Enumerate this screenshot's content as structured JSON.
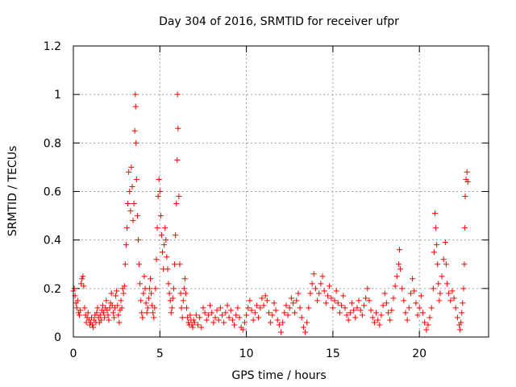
{
  "chart_data": {
    "type": "scatter",
    "title": "Day 304 of 2016, SRMTID for receiver ufpr",
    "xlabel": "GPS time / hours",
    "ylabel": "SRMTID / TECUs",
    "xlim": [
      0,
      24
    ],
    "ylim": [
      0,
      1.2
    ],
    "x_ticks": [
      0,
      5,
      10,
      15,
      20
    ],
    "x_tick_labels": [
      "0",
      "5",
      "10",
      "15",
      "20"
    ],
    "y_ticks": [
      0,
      0.2,
      0.4,
      0.6,
      0.8,
      1.0,
      1.2
    ],
    "y_tick_labels": [
      "0",
      "0.2",
      "0.4",
      "0.6",
      "0.8",
      "1",
      "1.2"
    ],
    "grid": true,
    "marker": "+",
    "color": "#ff0000",
    "series": [
      {
        "name": "SRMTID",
        "points": [
          [
            0.0,
            0.19
          ],
          [
            0.05,
            0.2
          ],
          [
            0.1,
            0.17
          ],
          [
            0.15,
            0.14
          ],
          [
            0.2,
            0.12
          ],
          [
            0.25,
            0.15
          ],
          [
            0.3,
            0.1
          ],
          [
            0.35,
            0.09
          ],
          [
            0.4,
            0.11
          ],
          [
            0.45,
            0.22
          ],
          [
            0.5,
            0.24
          ],
          [
            0.55,
            0.25
          ],
          [
            0.6,
            0.21
          ],
          [
            0.65,
            0.12
          ],
          [
            0.7,
            0.09
          ],
          [
            0.75,
            0.06
          ],
          [
            0.8,
            0.08
          ],
          [
            0.85,
            0.1
          ],
          [
            0.9,
            0.07
          ],
          [
            0.95,
            0.05
          ],
          [
            1.0,
            0.06
          ],
          [
            1.05,
            0.08
          ],
          [
            1.1,
            0.05
          ],
          [
            1.15,
            0.04
          ],
          [
            1.2,
            0.07
          ],
          [
            1.25,
            0.09
          ],
          [
            1.3,
            0.06
          ],
          [
            1.35,
            0.1
          ],
          [
            1.4,
            0.12
          ],
          [
            1.45,
            0.08
          ],
          [
            1.5,
            0.06
          ],
          [
            1.55,
            0.09
          ],
          [
            1.6,
            0.07
          ],
          [
            1.65,
            0.11
          ],
          [
            1.7,
            0.13
          ],
          [
            1.75,
            0.1
          ],
          [
            1.8,
            0.08
          ],
          [
            1.85,
            0.12
          ],
          [
            1.9,
            0.15
          ],
          [
            1.95,
            0.11
          ],
          [
            2.0,
            0.09
          ],
          [
            2.05,
            0.07
          ],
          [
            2.1,
            0.12
          ],
          [
            2.15,
            0.14
          ],
          [
            2.2,
            0.18
          ],
          [
            2.25,
            0.13
          ],
          [
            2.3,
            0.1
          ],
          [
            2.35,
            0.08
          ],
          [
            2.4,
            0.12
          ],
          [
            2.45,
            0.17
          ],
          [
            2.5,
            0.19
          ],
          [
            2.55,
            0.13
          ],
          [
            2.6,
            0.09
          ],
          [
            2.65,
            0.06
          ],
          [
            2.7,
            0.11
          ],
          [
            2.75,
            0.15
          ],
          [
            2.8,
            0.12
          ],
          [
            2.85,
            0.2
          ],
          [
            2.9,
            0.18
          ],
          [
            2.95,
            0.21
          ],
          [
            3.0,
            0.3
          ],
          [
            3.05,
            0.38
          ],
          [
            3.1,
            0.45
          ],
          [
            3.15,
            0.55
          ],
          [
            3.2,
            0.68
          ],
          [
            3.25,
            0.6
          ],
          [
            3.3,
            0.52
          ],
          [
            3.35,
            0.7
          ],
          [
            3.4,
            0.62
          ],
          [
            3.45,
            0.48
          ],
          [
            3.5,
            0.55
          ],
          [
            3.55,
            0.85
          ],
          [
            3.58,
            1.0
          ],
          [
            3.6,
            0.95
          ],
          [
            3.62,
            0.8
          ],
          [
            3.65,
            0.65
          ],
          [
            3.7,
            0.5
          ],
          [
            3.75,
            0.4
          ],
          [
            3.8,
            0.3
          ],
          [
            3.85,
            0.22
          ],
          [
            3.9,
            0.15
          ],
          [
            3.95,
            0.1
          ],
          [
            4.0,
            0.08
          ],
          [
            4.05,
            0.18
          ],
          [
            4.1,
            0.25
          ],
          [
            4.15,
            0.2
          ],
          [
            4.2,
            0.14
          ],
          [
            4.25,
            0.1
          ],
          [
            4.3,
            0.12
          ],
          [
            4.35,
            0.16
          ],
          [
            4.4,
            0.2
          ],
          [
            4.45,
            0.24
          ],
          [
            4.5,
            0.18
          ],
          [
            4.55,
            0.13
          ],
          [
            4.6,
            0.1
          ],
          [
            4.65,
            0.08
          ],
          [
            4.7,
            0.12
          ],
          [
            4.75,
            0.2
          ],
          [
            4.8,
            0.32
          ],
          [
            4.85,
            0.45
          ],
          [
            4.9,
            0.58
          ],
          [
            4.95,
            0.65
          ],
          [
            5.0,
            0.6
          ],
          [
            5.05,
            0.5
          ],
          [
            5.1,
            0.42
          ],
          [
            5.15,
            0.35
          ],
          [
            5.2,
            0.28
          ],
          [
            5.25,
            0.38
          ],
          [
            5.3,
            0.45
          ],
          [
            5.35,
            0.4
          ],
          [
            5.4,
            0.33
          ],
          [
            5.45,
            0.28
          ],
          [
            5.5,
            0.22
          ],
          [
            5.55,
            0.18
          ],
          [
            5.6,
            0.15
          ],
          [
            5.65,
            0.1
          ],
          [
            5.7,
            0.12
          ],
          [
            5.75,
            0.16
          ],
          [
            5.8,
            0.2
          ],
          [
            5.85,
            0.3
          ],
          [
            5.9,
            0.42
          ],
          [
            5.95,
            0.55
          ],
          [
            6.0,
            0.73
          ],
          [
            6.02,
            1.0
          ],
          [
            6.05,
            0.86
          ],
          [
            6.1,
            0.58
          ],
          [
            6.15,
            0.3
          ],
          [
            6.2,
            0.18
          ],
          [
            6.25,
            0.12
          ],
          [
            6.3,
            0.08
          ],
          [
            6.35,
            0.15
          ],
          [
            6.4,
            0.2
          ],
          [
            6.45,
            0.24
          ],
          [
            6.5,
            0.18
          ],
          [
            6.55,
            0.12
          ],
          [
            6.6,
            0.08
          ],
          [
            6.65,
            0.06
          ],
          [
            6.7,
            0.05
          ],
          [
            6.75,
            0.09
          ],
          [
            6.8,
            0.07
          ],
          [
            6.85,
            0.05
          ],
          [
            6.9,
            0.04
          ],
          [
            6.95,
            0.07
          ],
          [
            7.0,
            0.06
          ],
          [
            7.1,
            0.09
          ],
          [
            7.2,
            0.05
          ],
          [
            7.3,
            0.08
          ],
          [
            7.4,
            0.04
          ],
          [
            7.5,
            0.12
          ],
          [
            7.6,
            0.1
          ],
          [
            7.7,
            0.07
          ],
          [
            7.8,
            0.09
          ],
          [
            7.9,
            0.13
          ],
          [
            8.0,
            0.1
          ],
          [
            8.1,
            0.06
          ],
          [
            8.2,
            0.08
          ],
          [
            8.3,
            0.11
          ],
          [
            8.4,
            0.07
          ],
          [
            8.5,
            0.12
          ],
          [
            8.6,
            0.09
          ],
          [
            8.7,
            0.06
          ],
          [
            8.8,
            0.1
          ],
          [
            8.9,
            0.13
          ],
          [
            9.0,
            0.08
          ],
          [
            9.1,
            0.11
          ],
          [
            9.2,
            0.07
          ],
          [
            9.3,
            0.05
          ],
          [
            9.4,
            0.09
          ],
          [
            9.5,
            0.12
          ],
          [
            9.6,
            0.08
          ],
          [
            9.7,
            0.04
          ],
          [
            9.8,
            0.03
          ],
          [
            9.9,
            0.06
          ],
          [
            10.0,
            0.09
          ],
          [
            10.1,
            0.12
          ],
          [
            10.2,
            0.15
          ],
          [
            10.3,
            0.11
          ],
          [
            10.4,
            0.07
          ],
          [
            10.5,
            0.1
          ],
          [
            10.6,
            0.13
          ],
          [
            10.7,
            0.08
          ],
          [
            10.8,
            0.12
          ],
          [
            10.9,
            0.16
          ],
          [
            11.0,
            0.13
          ],
          [
            11.1,
            0.17
          ],
          [
            11.2,
            0.15
          ],
          [
            11.3,
            0.1
          ],
          [
            11.4,
            0.06
          ],
          [
            11.5,
            0.09
          ],
          [
            11.6,
            0.14
          ],
          [
            11.7,
            0.11
          ],
          [
            11.8,
            0.07
          ],
          [
            11.9,
            0.05
          ],
          [
            12.0,
            0.02
          ],
          [
            12.1,
            0.06
          ],
          [
            12.2,
            0.1
          ],
          [
            12.3,
            0.13
          ],
          [
            12.4,
            0.09
          ],
          [
            12.5,
            0.12
          ],
          [
            12.6,
            0.16
          ],
          [
            12.7,
            0.14
          ],
          [
            12.8,
            0.1
          ],
          [
            12.9,
            0.15
          ],
          [
            13.0,
            0.18
          ],
          [
            13.1,
            0.12
          ],
          [
            13.2,
            0.08
          ],
          [
            13.3,
            0.04
          ],
          [
            13.4,
            0.02
          ],
          [
            13.5,
            0.06
          ],
          [
            13.6,
            0.12
          ],
          [
            13.7,
            0.18
          ],
          [
            13.8,
            0.22
          ],
          [
            13.9,
            0.26
          ],
          [
            14.0,
            0.2
          ],
          [
            14.1,
            0.15
          ],
          [
            14.2,
            0.18
          ],
          [
            14.3,
            0.22
          ],
          [
            14.4,
            0.25
          ],
          [
            14.5,
            0.19
          ],
          [
            14.6,
            0.14
          ],
          [
            14.7,
            0.17
          ],
          [
            14.8,
            0.21
          ],
          [
            14.9,
            0.16
          ],
          [
            15.0,
            0.12
          ],
          [
            15.1,
            0.15
          ],
          [
            15.2,
            0.19
          ],
          [
            15.3,
            0.14
          ],
          [
            15.4,
            0.1
          ],
          [
            15.5,
            0.13
          ],
          [
            15.6,
            0.17
          ],
          [
            15.7,
            0.12
          ],
          [
            15.8,
            0.09
          ],
          [
            15.9,
            0.07
          ],
          [
            16.0,
            0.1
          ],
          [
            16.1,
            0.14
          ],
          [
            16.2,
            0.11
          ],
          [
            16.3,
            0.08
          ],
          [
            16.4,
            0.12
          ],
          [
            16.5,
            0.15
          ],
          [
            16.6,
            0.11
          ],
          [
            16.7,
            0.09
          ],
          [
            16.8,
            0.13
          ],
          [
            16.9,
            0.16
          ],
          [
            17.0,
            0.2
          ],
          [
            17.1,
            0.15
          ],
          [
            17.2,
            0.11
          ],
          [
            17.3,
            0.08
          ],
          [
            17.4,
            0.06
          ],
          [
            17.5,
            0.1
          ],
          [
            17.6,
            0.07
          ],
          [
            17.7,
            0.05
          ],
          [
            17.8,
            0.09
          ],
          [
            17.9,
            0.13
          ],
          [
            18.0,
            0.18
          ],
          [
            18.1,
            0.14
          ],
          [
            18.2,
            0.1
          ],
          [
            18.3,
            0.07
          ],
          [
            18.4,
            0.11
          ],
          [
            18.5,
            0.16
          ],
          [
            18.6,
            0.21
          ],
          [
            18.7,
            0.25
          ],
          [
            18.8,
            0.3
          ],
          [
            18.85,
            0.36
          ],
          [
            18.9,
            0.28
          ],
          [
            19.0,
            0.2
          ],
          [
            19.1,
            0.15
          ],
          [
            19.2,
            0.1
          ],
          [
            19.3,
            0.07
          ],
          [
            19.4,
            0.12
          ],
          [
            19.5,
            0.18
          ],
          [
            19.6,
            0.24
          ],
          [
            19.7,
            0.19
          ],
          [
            19.8,
            0.14
          ],
          [
            19.9,
            0.09
          ],
          [
            20.0,
            0.12
          ],
          [
            20.1,
            0.17
          ],
          [
            20.2,
            0.1
          ],
          [
            20.3,
            0.06
          ],
          [
            20.4,
            0.03
          ],
          [
            20.5,
            0.05
          ],
          [
            20.6,
            0.08
          ],
          [
            20.7,
            0.12
          ],
          [
            20.8,
            0.2
          ],
          [
            20.85,
            0.35
          ],
          [
            20.9,
            0.51
          ],
          [
            20.95,
            0.45
          ],
          [
            21.0,
            0.38
          ],
          [
            21.05,
            0.3
          ],
          [
            21.1,
            0.22
          ],
          [
            21.15,
            0.15
          ],
          [
            21.2,
            0.18
          ],
          [
            21.3,
            0.25
          ],
          [
            21.4,
            0.32
          ],
          [
            21.5,
            0.39
          ],
          [
            21.55,
            0.3
          ],
          [
            21.6,
            0.22
          ],
          [
            21.7,
            0.18
          ],
          [
            21.8,
            0.15
          ],
          [
            21.9,
            0.19
          ],
          [
            22.0,
            0.16
          ],
          [
            22.1,
            0.12
          ],
          [
            22.2,
            0.08
          ],
          [
            22.3,
            0.05
          ],
          [
            22.35,
            0.03
          ],
          [
            22.4,
            0.06
          ],
          [
            22.45,
            0.1
          ],
          [
            22.5,
            0.14
          ],
          [
            22.55,
            0.2
          ],
          [
            22.6,
            0.3
          ],
          [
            22.62,
            0.45
          ],
          [
            22.65,
            0.58
          ],
          [
            22.7,
            0.65
          ],
          [
            22.75,
            0.68
          ],
          [
            22.8,
            0.64
          ]
        ]
      }
    ]
  }
}
